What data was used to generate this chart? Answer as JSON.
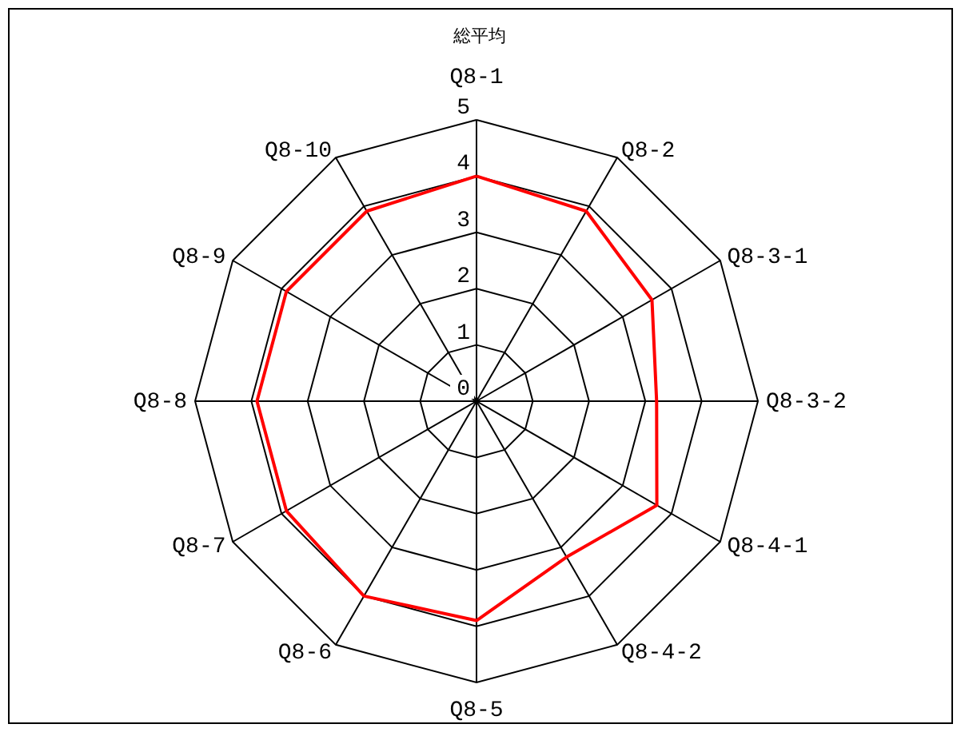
{
  "chart_data": {
    "type": "radar",
    "title": "総平均",
    "categories": [
      "Q8-1",
      "Q8-2",
      "Q8-3-1",
      "Q8-3-2",
      "Q8-4-1",
      "Q8-4-2",
      "Q8-5",
      "Q8-6",
      "Q8-7",
      "Q8-8",
      "Q8-9",
      "Q8-10"
    ],
    "series": [
      {
        "color": "#ff0000",
        "values": [
          4.0,
          3.9,
          3.6,
          3.2,
          3.7,
          3.2,
          3.9,
          4.0,
          3.9,
          3.9,
          3.9,
          3.9
        ]
      }
    ],
    "ylim": [
      0,
      5
    ],
    "yticks": [
      0,
      1,
      2,
      3,
      4,
      5
    ],
    "grid": true
  }
}
